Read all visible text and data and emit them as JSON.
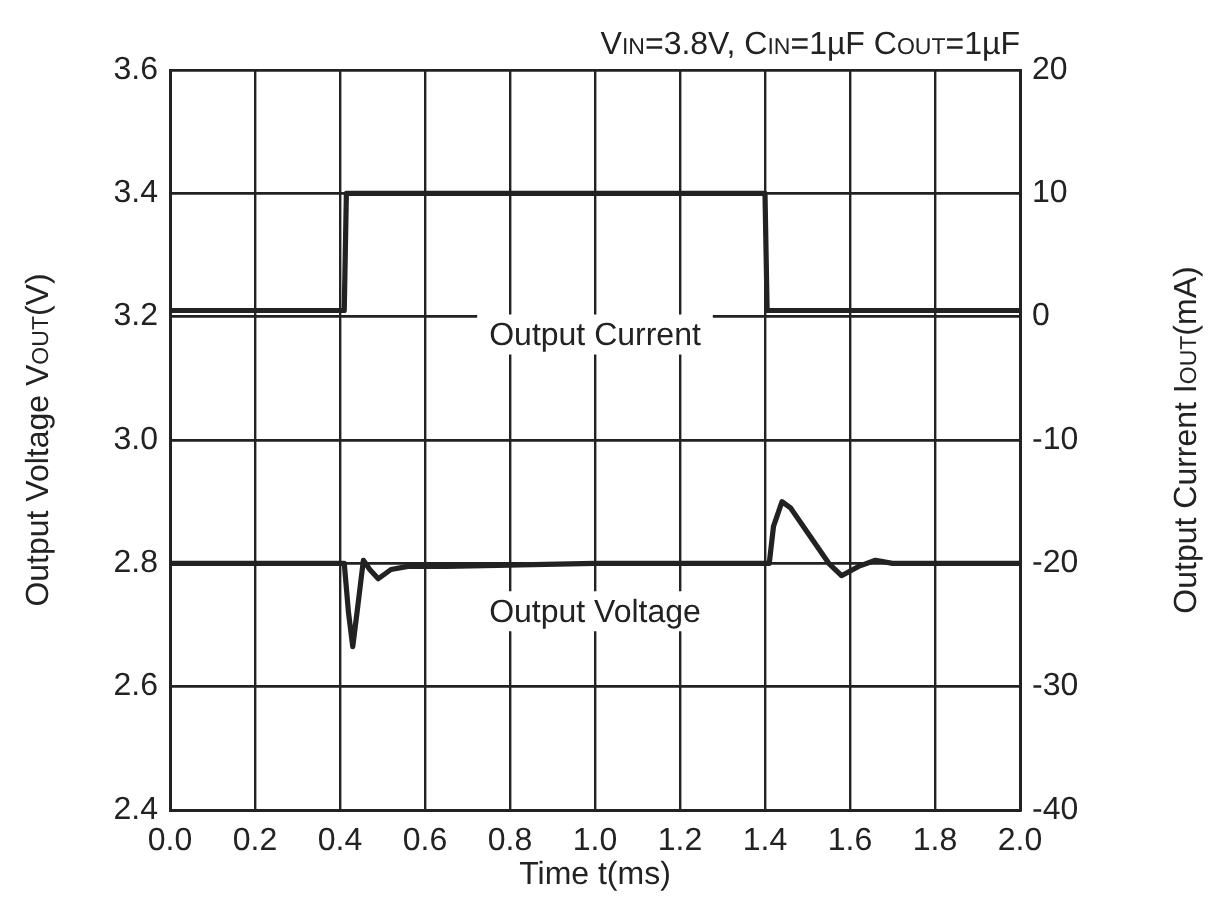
{
  "chart_data": {
    "type": "line",
    "title": "V$_{IN}$=3.8V, C$_{IN}$=1µF C$_{OUT}$=1µF",
    "xlabel": "Time t(ms)",
    "ylabel": "Output Voltage V$_{OUT}$(V)",
    "y2label": "Output Current I$_{OUT}$(mA)",
    "xlim": [
      0,
      2
    ],
    "xticks": [
      {
        "value": 0,
        "label": "0.0"
      },
      {
        "value": 0.2,
        "label": "0.2"
      },
      {
        "value": 0.4,
        "label": "0.4"
      },
      {
        "value": 0.6,
        "label": "0.6"
      },
      {
        "value": 0.8,
        "label": "0.8"
      },
      {
        "value": 1,
        "label": "1.0"
      },
      {
        "value": 1.2,
        "label": "1.2"
      },
      {
        "value": 1.4,
        "label": "1.4"
      },
      {
        "value": 1.6,
        "label": "1.6"
      },
      {
        "value": 1.8,
        "label": "1.8"
      },
      {
        "value": 2,
        "label": "2.0"
      }
    ],
    "ylim": [
      2.4,
      3.6
    ],
    "yticks": [
      {
        "value": 2.4,
        "label": "2.4"
      },
      {
        "value": 2.6,
        "label": "2.6"
      },
      {
        "value": 2.8,
        "label": "2.8"
      },
      {
        "value": 3,
        "label": "3.0"
      },
      {
        "value": 3.2,
        "label": "3.2"
      },
      {
        "value": 3.4,
        "label": "3.4"
      },
      {
        "value": 3.6,
        "label": "3.6"
      }
    ],
    "y2lim": [
      -40,
      20
    ],
    "y2ticks": [
      -40,
      -30,
      -20,
      -10,
      0,
      10,
      20
    ],
    "grid": true,
    "legend": false,
    "marker": "none",
    "line_style": "solid",
    "series": [
      {
        "name": "Output Current",
        "color": "#222222",
        "axis": "y2",
        "x": [
          0,
          0.41,
          0.415,
          1.4,
          1.405,
          2
        ],
        "values": [
          0.5,
          0.5,
          10,
          10,
          0.5,
          0.5
        ]
      },
      {
        "name": "Output Voltage",
        "color": "#222222",
        "x": [
          0,
          0.4,
          0.41,
          0.42,
          0.43,
          0.44,
          0.455,
          0.47,
          0.49,
          0.52,
          0.56,
          0.65,
          1,
          1.4,
          1.41,
          1.42,
          1.44,
          1.46,
          1.5,
          1.55,
          1.58,
          1.62,
          1.66,
          1.7,
          2
        ],
        "values": [
          2.8,
          2.8,
          2.8,
          2.72,
          2.665,
          2.72,
          2.805,
          2.79,
          2.775,
          2.79,
          2.795,
          2.795,
          2.8,
          2.8,
          2.8,
          2.86,
          2.9,
          2.89,
          2.85,
          2.8,
          2.78,
          2.795,
          2.805,
          2.8,
          2.8
        ]
      }
    ]
  }
}
